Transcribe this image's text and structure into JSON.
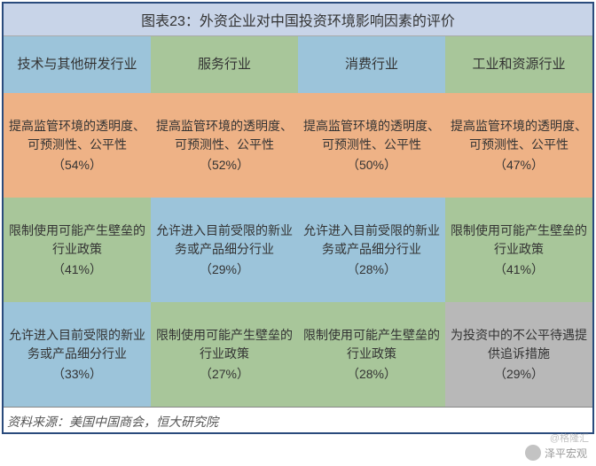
{
  "title": "图表23：外资企业对中国投资环境影响因素的评价",
  "colors": {
    "title_bg": "#c8d4e8",
    "border": "#2a4b7c",
    "blue": "#9cc4da",
    "orange": "#eeb286",
    "green": "#a8c69a",
    "gray": "#b8b8b8"
  },
  "columns": [
    "技术与其他研发行业",
    "服务行业",
    "消费行业",
    "工业和资源行业"
  ],
  "header_colors": [
    "blue",
    "green",
    "blue",
    "green"
  ],
  "rows": [
    {
      "cells": [
        {
          "text": "提高监管环境的透明度、可预测性、公平性",
          "pct": "（54%）",
          "color": "orange"
        },
        {
          "text": "提高监管环境的透明度、可预测性、公平性",
          "pct": "（52%）",
          "color": "orange"
        },
        {
          "text": "提高监管环境的透明度、可预测性、公平性",
          "pct": "（50%）",
          "color": "orange"
        },
        {
          "text": "提高监管环境的透明度、可预测性、公平性",
          "pct": "（47%）",
          "color": "orange"
        }
      ]
    },
    {
      "cells": [
        {
          "text": "限制使用可能产生壁垒的行业政策",
          "pct": "（41%）",
          "color": "green"
        },
        {
          "text": "允许进入目前受限的新业务或产品细分行业",
          "pct": "（29%）",
          "color": "blue"
        },
        {
          "text": "允许进入目前受限的新业务或产品细分行业",
          "pct": "（28%）",
          "color": "blue"
        },
        {
          "text": "限制使用可能产生壁垒的行业政策",
          "pct": "（41%）",
          "color": "green"
        }
      ]
    },
    {
      "cells": [
        {
          "text": "允许进入目前受限的新业务或产品细分行业",
          "pct": "（33%）",
          "color": "blue"
        },
        {
          "text": "限制使用可能产生壁垒的行业政策",
          "pct": "（27%）",
          "color": "green"
        },
        {
          "text": "限制使用可能产生壁垒的行业政策",
          "pct": "（28%）",
          "color": "green"
        },
        {
          "text": "为投资中的不公平待遇提供追诉措施",
          "pct": "（29%）",
          "color": "gray"
        }
      ]
    }
  ],
  "source": "资料来源：美国中国商会，恒大研究院",
  "watermark1": "泽平宏观",
  "watermark2": "@格隆汇"
}
